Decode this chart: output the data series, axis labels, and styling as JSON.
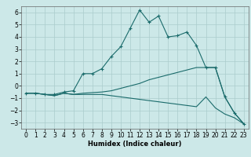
{
  "title": "",
  "xlabel": "Humidex (Indice chaleur)",
  "background_color": "#cce8e8",
  "grid_color": "#aacccc",
  "line_color": "#1a6b6b",
  "xlim": [
    -0.5,
    23.5
  ],
  "ylim": [
    -3.5,
    6.5
  ],
  "xticks": [
    0,
    1,
    2,
    3,
    4,
    5,
    6,
    7,
    8,
    9,
    10,
    11,
    12,
    13,
    14,
    15,
    16,
    17,
    18,
    19,
    20,
    21,
    22,
    23
  ],
  "yticks": [
    -3,
    -2,
    -1,
    0,
    1,
    2,
    3,
    4,
    5,
    6
  ],
  "line1_x": [
    0,
    1,
    2,
    3,
    4,
    5,
    6,
    7,
    8,
    9,
    10,
    11,
    12,
    13,
    14,
    15,
    16,
    17,
    18,
    19,
    20,
    21,
    22,
    23
  ],
  "line1_y": [
    -0.6,
    -0.6,
    -0.7,
    -0.7,
    -0.5,
    -0.4,
    1.0,
    1.0,
    1.4,
    2.4,
    3.2,
    4.7,
    6.2,
    5.2,
    5.7,
    4.0,
    4.1,
    4.4,
    3.3,
    1.5,
    1.5,
    -0.9,
    -2.2,
    -3.1
  ],
  "line2_x": [
    0,
    1,
    2,
    3,
    4,
    5,
    6,
    7,
    8,
    9,
    10,
    11,
    12,
    13,
    14,
    15,
    16,
    17,
    18,
    19,
    20,
    21,
    22,
    23
  ],
  "line2_y": [
    -0.6,
    -0.6,
    -0.7,
    -0.8,
    -0.6,
    -0.7,
    -0.6,
    -0.55,
    -0.5,
    -0.4,
    -0.2,
    0.0,
    0.2,
    0.5,
    0.7,
    0.9,
    1.1,
    1.3,
    1.5,
    1.5,
    1.5,
    -0.9,
    -2.2,
    -3.1
  ],
  "line3_x": [
    0,
    1,
    2,
    3,
    4,
    5,
    6,
    7,
    8,
    9,
    10,
    11,
    12,
    13,
    14,
    15,
    16,
    17,
    18,
    19,
    20,
    21,
    22,
    23
  ],
  "line3_y": [
    -0.6,
    -0.6,
    -0.7,
    -0.8,
    -0.6,
    -0.7,
    -0.7,
    -0.7,
    -0.7,
    -0.8,
    -0.9,
    -1.0,
    -1.1,
    -1.2,
    -1.3,
    -1.4,
    -1.5,
    -1.6,
    -1.7,
    -0.9,
    -1.8,
    -2.3,
    -2.6,
    -3.1
  ],
  "fontsize_label": 6,
  "fontsize_tick": 5.5
}
